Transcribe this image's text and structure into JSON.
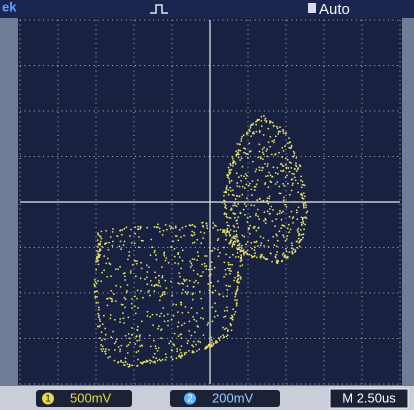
{
  "header": {
    "left": "ek",
    "mode": "Auto"
  },
  "footer": {
    "ch1": {
      "number": "1",
      "scale": "500mV"
    },
    "ch2": {
      "number": "2",
      "scale": "200mV"
    },
    "timebase": "M 2.50us"
  }
}
